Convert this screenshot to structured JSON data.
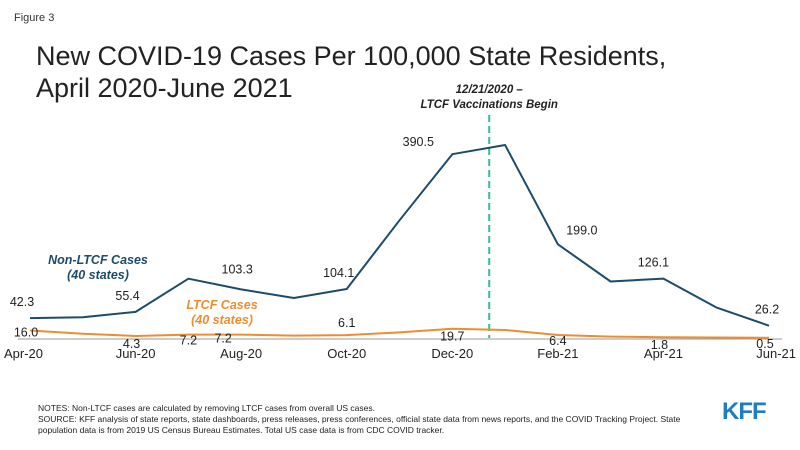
{
  "figure_label": "Figure 3",
  "title_line1": "New COVID-19 Cases Per 100,000 State Residents,",
  "title_line2": "April 2020-June 2021",
  "annotation": {
    "line1": "12/21/2020 –",
    "line2": "LTCF Vaccinations Begin",
    "x": "Dec-20",
    "x_index": 8.7
  },
  "notes": {
    "line1": "NOTES: Non-LTCF cases are calculated by removing LTCF cases from overall US cases.",
    "line2": "SOURCE: KFF analysis of state reports, state dashboards, press releases, press conferences, official state data from news reports, and the COVID Tracking Project. State population data is from 2019 US Census Bureau Estimates. Total US case data is from CDC COVID tracker."
  },
  "logo": "KFF",
  "colors": {
    "non_ltcf": "#1d4b6c",
    "ltcf": "#f08c2e",
    "annotation_line": "#2dbda0",
    "axis": "#999999"
  },
  "chart_data": {
    "type": "line",
    "title": "New COVID-19 Cases Per 100,000 State Residents, April 2020-June 2021",
    "xlabel": "",
    "ylabel": "",
    "ylim": [
      0,
      420
    ],
    "grid": false,
    "categories": [
      "Apr-20",
      "May-20",
      "Jun-20",
      "Jul-20",
      "Aug-20",
      "Sep-20",
      "Oct-20",
      "Nov-20",
      "Dec-20",
      "Jan-21",
      "Feb-21",
      "Mar-21",
      "Apr-21",
      "May-21",
      "Jun-21"
    ],
    "tick_labels": [
      "Apr-20",
      "Jun-20",
      "Aug-20",
      "Oct-20",
      "Dec-20",
      "Feb-21",
      "Apr-21",
      "Jun-21"
    ],
    "tick_indices": [
      0,
      2,
      4,
      6,
      8,
      10,
      12,
      14
    ],
    "series": [
      {
        "name": "Non-LTCF Cases",
        "name_sub": "(40 states)",
        "values": [
          42.3,
          44,
          55.4,
          126,
          103.3,
          85,
          104.1,
          250,
          390.5,
          410,
          199.0,
          120,
          126.1,
          65,
          26.2
        ],
        "labels": {
          "0": "42.3",
          "2": "55.4",
          "4": "103.3",
          "6": "104.1",
          "8": "390.5",
          "10": "199.0",
          "12": "126.1",
          "14": "26.2"
        }
      },
      {
        "name": "LTCF Cases",
        "name_sub": "(40 states)",
        "values": [
          16.0,
          9,
          4.3,
          7.2,
          7.2,
          5,
          6.1,
          12,
          19.7,
          17,
          6.4,
          3,
          1.8,
          1,
          0.5
        ],
        "labels": {
          "0": "16.0",
          "2": "4.3",
          "3": "7.2",
          "4": "7.2",
          "6": "6.1",
          "8": "19.7",
          "10": "6.4",
          "12": "1.8",
          "14": "0.5"
        }
      }
    ]
  }
}
